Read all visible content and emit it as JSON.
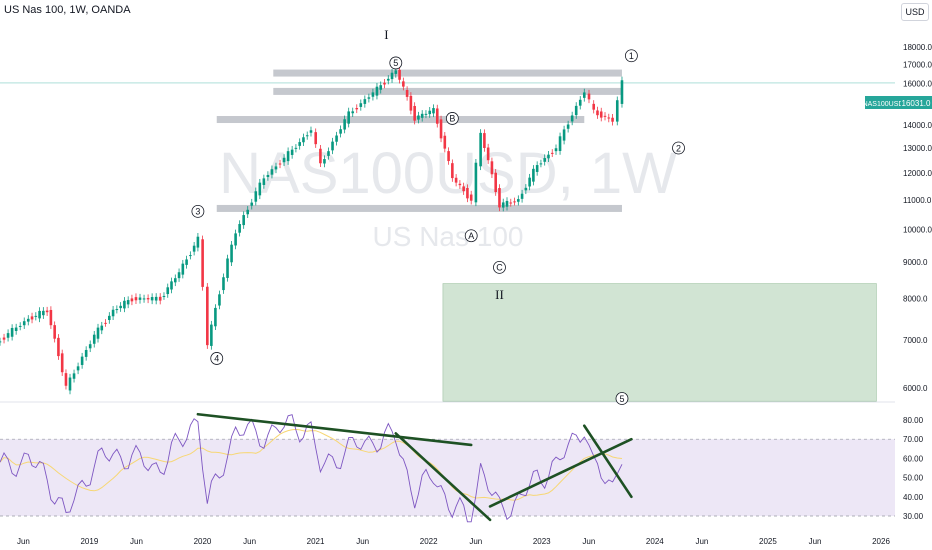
{
  "header": {
    "title": "US Nas 100, 1W, OANDA",
    "currency": "USD"
  },
  "watermark": {
    "symbol": "NAS100USD, 1W",
    "name": "US Nas 100"
  },
  "price_tag": {
    "symbol": "NAS100USD",
    "value": "16031.0"
  },
  "colors": {
    "up": "#089981",
    "down": "#f23645",
    "zone": "#b9d5bc",
    "level": "#b2b5be",
    "trend": "#1e5124",
    "rsi_line": "#7e57c2",
    "rsi_ma": "#f7d774",
    "rsi_band": "#ede7f6"
  },
  "chart_data": [
    {
      "type": "candlestick",
      "x_ticks": [
        "Jun",
        "2019",
        "Jun",
        "2020",
        "Jun",
        "2021",
        "Jun",
        "2022",
        "Jun",
        "2023",
        "Jun",
        "2024",
        "Jun",
        "2025",
        "Jun",
        "2026"
      ],
      "y_ticks": [
        "18000.0",
        "17000.0",
        "16000.0",
        "15000.0",
        "14000.0",
        "13000.0",
        "12000.0",
        "11000.0",
        "10000.0",
        "9000.0",
        "8000.0",
        "7000.0",
        "6000.0"
      ],
      "last_price": 16031.0,
      "levels": [
        16550,
        15600,
        14250,
        10700
      ],
      "zone": {
        "from": "2022-04",
        "to": "2026-02",
        "low": 5750,
        "high": 8400
      },
      "points": [
        [
          "2018-05",
          7000
        ],
        [
          "2018-08",
          7500
        ],
        [
          "2018-10",
          7700
        ],
        [
          "2018-12",
          6000
        ],
        [
          "2019-03",
          7100
        ],
        [
          "2019-05",
          7700
        ],
        [
          "2019-07",
          8000
        ],
        [
          "2019-10",
          8000
        ],
        [
          "2019-12",
          8700
        ],
        [
          "2020-02",
          9700
        ],
        [
          "2020-03",
          6900
        ],
        [
          "2020-06",
          9900
        ],
        [
          "2020-09",
          11800
        ],
        [
          "2020-12",
          12900
        ],
        [
          "2021-02",
          13800
        ],
        [
          "2021-03",
          12300
        ],
        [
          "2021-06",
          14500
        ],
        [
          "2021-09",
          15700
        ],
        [
          "2021-11",
          16700
        ],
        [
          "2022-01",
          14300
        ],
        [
          "2022-03",
          14700
        ],
        [
          "2022-05",
          11800
        ],
        [
          "2022-07",
          11000
        ],
        [
          "2022-08",
          13600
        ],
        [
          "2022-10",
          10800
        ],
        [
          "2022-12",
          11000
        ],
        [
          "2023-02",
          12300
        ],
        [
          "2023-04",
          13000
        ],
        [
          "2023-07",
          15600
        ],
        [
          "2023-08",
          14600
        ],
        [
          "2023-10",
          14200
        ],
        [
          "2023-11",
          16031
        ]
      ],
      "labels": [
        {
          "text": "I",
          "at": "2021-10",
          "price": 18700
        },
        {
          "text": "5",
          "at": "2021-11",
          "price": 17100
        },
        {
          "text": "1",
          "at": "2023-12",
          "price": 17500
        },
        {
          "text": "B",
          "at": "2022-05",
          "price": 14300
        },
        {
          "text": "2",
          "at": "2024-05",
          "price": 13000
        },
        {
          "text": "3",
          "at": "2020-02",
          "price": 10600
        },
        {
          "text": "A",
          "at": "2022-07",
          "price": 9800
        },
        {
          "text": "C",
          "at": "2022-10",
          "price": 8850
        },
        {
          "text": "II",
          "at": "2022-10",
          "price": 8100
        },
        {
          "text": "4",
          "at": "2020-04",
          "price": 6600
        },
        {
          "text": "5",
          "at": "2023-11",
          "price": 5800
        }
      ]
    },
    {
      "type": "line",
      "indicator": "RSI",
      "y_ticks": [
        "80.00",
        "70.00",
        "60.00",
        "50.00",
        "40.00",
        "30.00"
      ],
      "band": [
        30,
        70
      ],
      "points": [
        [
          "2018-05",
          55
        ],
        [
          "2018-08",
          60
        ],
        [
          "2018-10",
          50
        ],
        [
          "2018-12",
          30
        ],
        [
          "2019-03",
          58
        ],
        [
          "2019-05",
          62
        ],
        [
          "2019-07",
          60
        ],
        [
          "2019-10",
          55
        ],
        [
          "2019-12",
          68
        ],
        [
          "2020-02",
          82
        ],
        [
          "2020-03",
          35
        ],
        [
          "2020-06",
          75
        ],
        [
          "2020-09",
          72
        ],
        [
          "2020-12",
          78
        ],
        [
          "2021-02",
          74
        ],
        [
          "2021-03",
          55
        ],
        [
          "2021-06",
          65
        ],
        [
          "2021-09",
          70
        ],
        [
          "2021-11",
          71
        ],
        [
          "2022-01",
          40
        ],
        [
          "2022-03",
          52
        ],
        [
          "2022-05",
          33
        ],
        [
          "2022-07",
          30
        ],
        [
          "2022-08",
          55
        ],
        [
          "2022-10",
          33
        ],
        [
          "2022-12",
          38
        ],
        [
          "2023-02",
          50
        ],
        [
          "2023-04",
          56
        ],
        [
          "2023-07",
          78
        ],
        [
          "2023-08",
          55
        ],
        [
          "2023-10",
          45
        ],
        [
          "2023-11",
          64
        ]
      ],
      "trendlines": [
        {
          "from": [
            "2020-02",
            83
          ],
          "to": [
            "2022-07",
            67
          ]
        },
        {
          "from": [
            "2021-11",
            73
          ],
          "to": [
            "2022-09",
            28
          ]
        },
        {
          "from": [
            "2022-09",
            35
          ],
          "to": [
            "2023-12",
            70
          ]
        },
        {
          "from": [
            "2023-07",
            77
          ],
          "to": [
            "2023-12",
            40
          ]
        }
      ]
    }
  ]
}
